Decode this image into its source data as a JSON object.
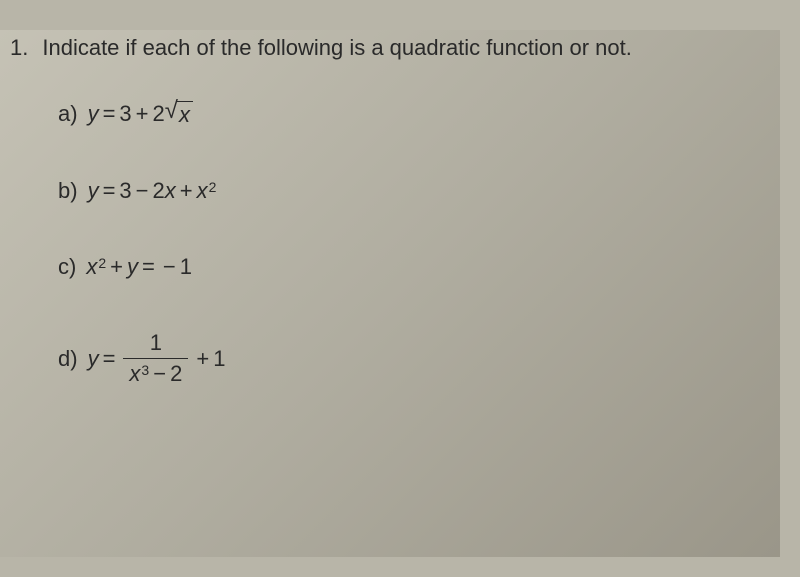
{
  "question": {
    "number": "1.",
    "text": "Indicate if each of the following is a quadratic function or not."
  },
  "items": {
    "a": {
      "label": "a)",
      "lhs": "y",
      "eq": "=",
      "t1": "3",
      "op1": "+",
      "t2": "2",
      "sqrt_arg": "x"
    },
    "b": {
      "label": "b)",
      "lhs": "y",
      "eq": "=",
      "t1": "3",
      "op1": "−",
      "t2a": "2",
      "t2b": "x",
      "op2": "+",
      "t3": "x",
      "t3sup": "2"
    },
    "c": {
      "label": "c)",
      "t1": "x",
      "t1sup": "2",
      "op1": "+",
      "t2": "y",
      "eq": "=",
      "t3": "−",
      "t4": "1"
    },
    "d": {
      "label": "d)",
      "lhs": "y",
      "eq": "=",
      "frac_num": "1",
      "frac_den_x": "x",
      "frac_den_sup": "3",
      "frac_den_op": "−",
      "frac_den_c": "2",
      "op1": "+",
      "tail": "1"
    }
  },
  "style": {
    "bg": "#b8b5a8",
    "text": "#2a2a2a",
    "fontsize_main": 22,
    "fontsize_sup": 14
  }
}
